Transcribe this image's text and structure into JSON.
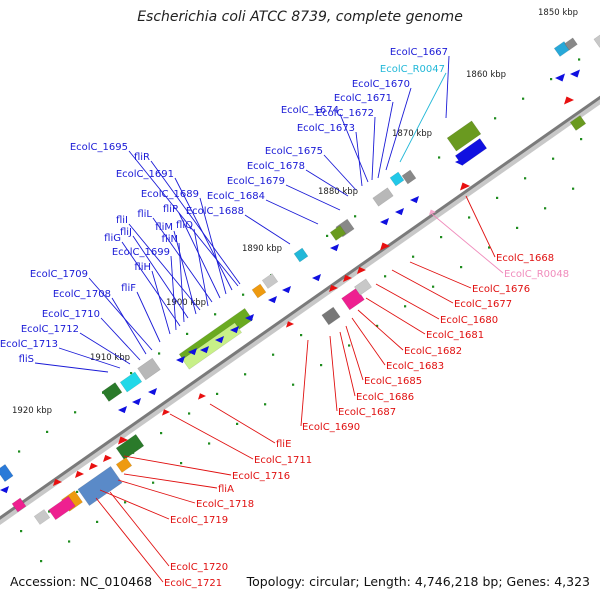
{
  "title": "Escherichia coli ATCC 8739, complete genome",
  "footer": {
    "accession": "Accession: NC_010468",
    "summary": "Topology: circular; Length: 4,746,218 bp; Genes: 4,323"
  },
  "colors": {
    "forward_label": "#1a1ad6",
    "reverse_label": "#e01010",
    "forward_rna_label": "#22b8d8",
    "reverse_rna_label": "#f08cbc",
    "backbone": "#777777",
    "tick_dot": "#1e8c1e"
  },
  "scale": [
    {
      "label": "1850 kbp"
    },
    {
      "label": "1860 kbp"
    },
    {
      "label": "1870 kbp"
    },
    {
      "label": "1880 kbp"
    },
    {
      "label": "1890 kbp"
    },
    {
      "label": "1900 kbp"
    },
    {
      "label": "1910 kbp"
    },
    {
      "label": "1920 kbp"
    }
  ],
  "forward_labels": [
    {
      "text": "EcolC_1667",
      "kind": "gene"
    },
    {
      "text": "EcolC_R0047",
      "kind": "rna"
    },
    {
      "text": "EcolC_1670",
      "kind": "gene"
    },
    {
      "text": "EcolC_1671",
      "kind": "gene"
    },
    {
      "text": "EcolC_1674",
      "kind": "gene"
    },
    {
      "text": "EcolC_1672",
      "kind": "gene"
    },
    {
      "text": "EcolC_1673",
      "kind": "gene"
    },
    {
      "text": "EcolC_1675",
      "kind": "gene"
    },
    {
      "text": "EcolC_1678",
      "kind": "gene"
    },
    {
      "text": "EcolC_1679",
      "kind": "gene"
    },
    {
      "text": "EcolC_1684",
      "kind": "gene"
    },
    {
      "text": "EcolC_1688",
      "kind": "gene"
    },
    {
      "text": "EcolC_1695",
      "kind": "gene"
    },
    {
      "text": "fliR",
      "kind": "gene"
    },
    {
      "text": "EcolC_1691",
      "kind": "gene"
    },
    {
      "text": "EcolC_1689",
      "kind": "gene"
    },
    {
      "text": "fliP",
      "kind": "gene"
    },
    {
      "text": "fliL",
      "kind": "gene"
    },
    {
      "text": "fliQ",
      "kind": "gene"
    },
    {
      "text": "fliI",
      "kind": "gene"
    },
    {
      "text": "fliM",
      "kind": "gene"
    },
    {
      "text": "fliJ",
      "kind": "gene"
    },
    {
      "text": "fliN",
      "kind": "gene"
    },
    {
      "text": "fliG",
      "kind": "gene"
    },
    {
      "text": "EcolC_1699",
      "kind": "gene"
    },
    {
      "text": "fliH",
      "kind": "gene"
    },
    {
      "text": "EcolC_1709",
      "kind": "gene"
    },
    {
      "text": "fliF",
      "kind": "gene"
    },
    {
      "text": "EcolC_1708",
      "kind": "gene"
    },
    {
      "text": "EcolC_1710",
      "kind": "gene"
    },
    {
      "text": "EcolC_1712",
      "kind": "gene"
    },
    {
      "text": "EcolC_1713",
      "kind": "gene"
    },
    {
      "text": "fliS",
      "kind": "gene"
    }
  ],
  "reverse_labels": [
    {
      "text": "EcolC_1668",
      "kind": "gene"
    },
    {
      "text": "EcolC_R0048",
      "kind": "rna"
    },
    {
      "text": "EcolC_1676",
      "kind": "gene"
    },
    {
      "text": "EcolC_1677",
      "kind": "gene"
    },
    {
      "text": "EcolC_1680",
      "kind": "gene"
    },
    {
      "text": "EcolC_1681",
      "kind": "gene"
    },
    {
      "text": "EcolC_1682",
      "kind": "gene"
    },
    {
      "text": "EcolC_1683",
      "kind": "gene"
    },
    {
      "text": "EcolC_1685",
      "kind": "gene"
    },
    {
      "text": "EcolC_1686",
      "kind": "gene"
    },
    {
      "text": "EcolC_1687",
      "kind": "gene"
    },
    {
      "text": "EcolC_1690",
      "kind": "gene"
    },
    {
      "text": "fliE",
      "kind": "gene"
    },
    {
      "text": "EcolC_1711",
      "kind": "gene"
    },
    {
      "text": "EcolC_1716",
      "kind": "gene"
    },
    {
      "text": "fliA",
      "kind": "gene"
    },
    {
      "text": "EcolC_1718",
      "kind": "gene"
    },
    {
      "text": "EcolC_1719",
      "kind": "gene"
    },
    {
      "text": "EcolC_1720",
      "kind": "gene"
    },
    {
      "text": "EcolC_1721",
      "kind": "gene"
    }
  ]
}
